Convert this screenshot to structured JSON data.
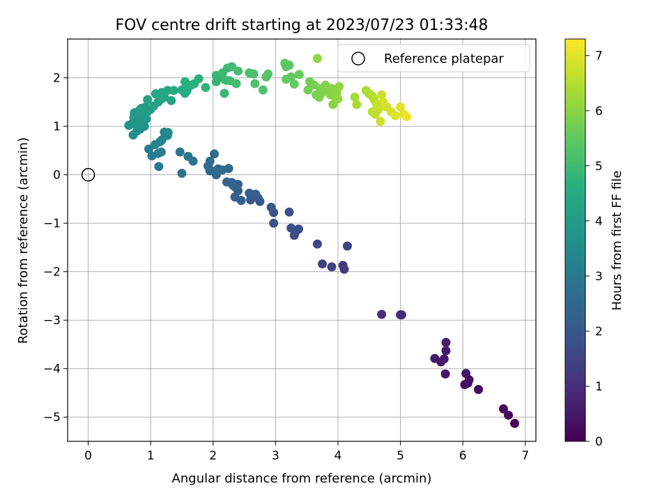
{
  "chart_data": {
    "type": "scatter",
    "title": "FOV centre drift starting at 2023/07/23 01:33:48",
    "xlabel": "Angular distance from reference (arcmin)",
    "ylabel": "Rotation from reference (arcmin)",
    "xlim": [
      -0.33,
      7.17
    ],
    "ylim": [
      -5.5,
      2.8
    ],
    "xticks": [
      "0",
      "1",
      "2",
      "3",
      "4",
      "5",
      "6",
      "7"
    ],
    "yticks": [
      "−5",
      "−4",
      "−3",
      "−2",
      "−1",
      "0",
      "1",
      "2"
    ],
    "grid": true,
    "legend": {
      "placement": "upper right",
      "entries": [
        "Reference platepar"
      ]
    },
    "reference_point": {
      "x": 0.0,
      "y": 0.0,
      "marker": "hollow-circle"
    },
    "colorbar": {
      "label": "Hours from first FF file",
      "range": [
        0,
        7.3
      ],
      "ticks": [
        "0",
        "1",
        "2",
        "3",
        "4",
        "5",
        "6",
        "7"
      ],
      "colormap": "viridis"
    },
    "series": [
      {
        "points": [
          {
            "x": 6.83,
            "y": -5.13,
            "t": 0.05
          },
          {
            "x": 6.73,
            "y": -4.96,
            "t": 0.1
          },
          {
            "x": 6.65,
            "y": -4.83,
            "t": 0.15
          },
          {
            "x": 6.25,
            "y": -4.43,
            "t": 0.25
          },
          {
            "x": 6.08,
            "y": -4.3,
            "t": 0.3
          },
          {
            "x": 6.1,
            "y": -4.23,
            "t": 0.32
          },
          {
            "x": 6.03,
            "y": -4.33,
            "t": 0.35
          },
          {
            "x": 6.05,
            "y": -4.1,
            "t": 0.4
          },
          {
            "x": 5.72,
            "y": -4.11,
            "t": 0.45
          },
          {
            "x": 5.55,
            "y": -3.79,
            "t": 0.55
          },
          {
            "x": 5.65,
            "y": -3.86,
            "t": 0.5
          },
          {
            "x": 5.7,
            "y": -3.8,
            "t": 0.52
          },
          {
            "x": 5.73,
            "y": -3.63,
            "t": 0.6
          },
          {
            "x": 5.73,
            "y": -3.46,
            "t": 0.62
          },
          {
            "x": 4.7,
            "y": -2.88,
            "t": 0.95
          },
          {
            "x": 5.0,
            "y": -2.89,
            "t": 0.9
          },
          {
            "x": 5.02,
            "y": -2.89,
            "t": 0.92
          },
          {
            "x": 4.08,
            "y": -1.87,
            "t": 1.3
          },
          {
            "x": 4.1,
            "y": -1.95,
            "t": 1.25
          },
          {
            "x": 3.9,
            "y": -1.9,
            "t": 1.35
          },
          {
            "x": 3.75,
            "y": -1.84,
            "t": 1.4
          },
          {
            "x": 4.15,
            "y": -1.47,
            "t": 1.45
          },
          {
            "x": 3.67,
            "y": -1.43,
            "t": 1.5
          },
          {
            "x": 3.3,
            "y": -1.25,
            "t": 1.7
          },
          {
            "x": 3.32,
            "y": -1.18,
            "t": 1.72
          },
          {
            "x": 3.37,
            "y": -1.12,
            "t": 1.75
          },
          {
            "x": 3.25,
            "y": -1.1,
            "t": 1.78
          },
          {
            "x": 2.97,
            "y": -1.0,
            "t": 1.85
          },
          {
            "x": 3.22,
            "y": -0.77,
            "t": 1.8
          },
          {
            "x": 2.97,
            "y": -0.78,
            "t": 1.9
          },
          {
            "x": 2.93,
            "y": -0.67,
            "t": 1.95
          },
          {
            "x": 2.75,
            "y": -0.55,
            "t": 2.0
          },
          {
            "x": 2.72,
            "y": -0.48,
            "t": 2.05
          },
          {
            "x": 2.6,
            "y": -0.52,
            "t": 2.1
          },
          {
            "x": 2.63,
            "y": -0.45,
            "t": 2.12
          },
          {
            "x": 2.68,
            "y": -0.4,
            "t": 2.15
          },
          {
            "x": 2.58,
            "y": -0.38,
            "t": 2.18
          },
          {
            "x": 2.45,
            "y": -0.53,
            "t": 2.2
          },
          {
            "x": 2.35,
            "y": -0.46,
            "t": 2.22
          },
          {
            "x": 2.4,
            "y": -0.33,
            "t": 2.25
          },
          {
            "x": 2.35,
            "y": -0.25,
            "t": 2.28
          },
          {
            "x": 2.4,
            "y": -0.2,
            "t": 2.3
          },
          {
            "x": 2.3,
            "y": -0.16,
            "t": 2.32
          },
          {
            "x": 2.22,
            "y": -0.15,
            "t": 2.35
          },
          {
            "x": 2.32,
            "y": -0.22,
            "t": 2.38
          },
          {
            "x": 2.05,
            "y": 0.0,
            "t": 2.45
          },
          {
            "x": 2.02,
            "y": 0.07,
            "t": 2.5
          },
          {
            "x": 1.95,
            "y": 0.08,
            "t": 2.52
          },
          {
            "x": 2.08,
            "y": 0.12,
            "t": 2.55
          },
          {
            "x": 2.15,
            "y": 0.1,
            "t": 2.58
          },
          {
            "x": 2.25,
            "y": 0.13,
            "t": 2.6
          },
          {
            "x": 1.92,
            "y": 0.18,
            "t": 2.62
          },
          {
            "x": 1.95,
            "y": 0.28,
            "t": 2.65
          },
          {
            "x": 2.02,
            "y": 0.43,
            "t": 2.68
          },
          {
            "x": 1.5,
            "y": 0.03,
            "t": 2.75
          },
          {
            "x": 1.68,
            "y": 0.28,
            "t": 2.8
          },
          {
            "x": 1.6,
            "y": 0.38,
            "t": 2.85
          },
          {
            "x": 1.47,
            "y": 0.47,
            "t": 2.9
          },
          {
            "x": 1.13,
            "y": 0.17,
            "t": 3.0
          },
          {
            "x": 1.02,
            "y": 0.39,
            "t": 3.05
          },
          {
            "x": 1.12,
            "y": 0.44,
            "t": 3.08
          },
          {
            "x": 1.17,
            "y": 0.47,
            "t": 3.1
          },
          {
            "x": 0.97,
            "y": 0.53,
            "t": 3.15
          },
          {
            "x": 1.07,
            "y": 0.62,
            "t": 3.2
          },
          {
            "x": 1.15,
            "y": 0.68,
            "t": 3.25
          },
          {
            "x": 1.18,
            "y": 0.72,
            "t": 3.3
          },
          {
            "x": 1.27,
            "y": 0.81,
            "t": 3.35
          },
          {
            "x": 1.22,
            "y": 0.88,
            "t": 3.38
          },
          {
            "x": 1.28,
            "y": 0.87,
            "t": 3.4
          },
          {
            "x": 0.72,
            "y": 0.82,
            "t": 3.55
          },
          {
            "x": 0.78,
            "y": 0.9,
            "t": 3.6
          },
          {
            "x": 0.83,
            "y": 0.94,
            "t": 3.62
          },
          {
            "x": 0.9,
            "y": 1.0,
            "t": 3.65
          },
          {
            "x": 0.65,
            "y": 1.02,
            "t": 3.7
          },
          {
            "x": 0.7,
            "y": 1.05,
            "t": 3.72
          },
          {
            "x": 0.75,
            "y": 1.08,
            "t": 3.75
          },
          {
            "x": 0.82,
            "y": 1.1,
            "t": 3.78
          },
          {
            "x": 0.88,
            "y": 1.13,
            "t": 3.8
          },
          {
            "x": 0.93,
            "y": 1.15,
            "t": 3.82
          },
          {
            "x": 0.73,
            "y": 1.18,
            "t": 3.85
          },
          {
            "x": 0.8,
            "y": 1.22,
            "t": 3.88
          },
          {
            "x": 0.87,
            "y": 1.26,
            "t": 3.9
          },
          {
            "x": 0.74,
            "y": 1.28,
            "t": 3.92
          },
          {
            "x": 0.82,
            "y": 1.33,
            "t": 3.95
          },
          {
            "x": 0.95,
            "y": 1.3,
            "t": 3.98
          },
          {
            "x": 0.85,
            "y": 1.37,
            "t": 4.0
          },
          {
            "x": 1.0,
            "y": 1.35,
            "t": 4.02
          },
          {
            "x": 0.92,
            "y": 1.4,
            "t": 4.05
          },
          {
            "x": 1.05,
            "y": 1.42,
            "t": 4.1
          },
          {
            "x": 0.95,
            "y": 1.55,
            "t": 4.15
          },
          {
            "x": 1.12,
            "y": 1.5,
            "t": 4.2
          },
          {
            "x": 1.17,
            "y": 1.56,
            "t": 4.22
          },
          {
            "x": 1.22,
            "y": 1.6,
            "t": 4.25
          },
          {
            "x": 1.33,
            "y": 1.53,
            "t": 4.28
          },
          {
            "x": 1.08,
            "y": 1.67,
            "t": 4.3
          },
          {
            "x": 1.18,
            "y": 1.7,
            "t": 4.35
          },
          {
            "x": 1.27,
            "y": 1.74,
            "t": 4.4
          },
          {
            "x": 1.37,
            "y": 1.74,
            "t": 4.45
          },
          {
            "x": 1.5,
            "y": 1.75,
            "t": 4.5
          },
          {
            "x": 1.55,
            "y": 1.68,
            "t": 4.52
          },
          {
            "x": 1.58,
            "y": 1.73,
            "t": 4.55
          },
          {
            "x": 1.6,
            "y": 1.8,
            "t": 4.58
          },
          {
            "x": 1.65,
            "y": 1.85,
            "t": 4.6
          },
          {
            "x": 1.7,
            "y": 1.88,
            "t": 4.62
          },
          {
            "x": 1.55,
            "y": 1.92,
            "t": 4.65
          },
          {
            "x": 1.77,
            "y": 1.98,
            "t": 4.7
          },
          {
            "x": 1.88,
            "y": 1.8,
            "t": 4.75
          },
          {
            "x": 2.05,
            "y": 1.92,
            "t": 4.8
          },
          {
            "x": 2.1,
            "y": 2.0,
            "t": 4.82
          },
          {
            "x": 2.05,
            "y": 2.05,
            "t": 4.85
          },
          {
            "x": 2.18,
            "y": 1.68,
            "t": 4.88
          },
          {
            "x": 2.2,
            "y": 1.95,
            "t": 4.9
          },
          {
            "x": 2.15,
            "y": 2.1,
            "t": 4.92
          },
          {
            "x": 2.23,
            "y": 2.2,
            "t": 4.95
          },
          {
            "x": 2.3,
            "y": 2.23,
            "t": 4.98
          },
          {
            "x": 2.27,
            "y": 1.94,
            "t": 5.0
          },
          {
            "x": 2.37,
            "y": 1.88,
            "t": 5.05
          },
          {
            "x": 2.4,
            "y": 2.14,
            "t": 5.1
          },
          {
            "x": 2.58,
            "y": 2.1,
            "t": 5.15
          },
          {
            "x": 2.65,
            "y": 2.08,
            "t": 5.18
          },
          {
            "x": 2.67,
            "y": 1.88,
            "t": 5.2
          },
          {
            "x": 2.8,
            "y": 1.75,
            "t": 5.25
          },
          {
            "x": 2.85,
            "y": 2.02,
            "t": 5.3
          },
          {
            "x": 2.88,
            "y": 2.08,
            "t": 5.32
          },
          {
            "x": 3.15,
            "y": 2.3,
            "t": 5.4
          },
          {
            "x": 3.17,
            "y": 2.23,
            "t": 5.42
          },
          {
            "x": 3.22,
            "y": 2.26,
            "t": 5.45
          },
          {
            "x": 3.17,
            "y": 1.97,
            "t": 5.5
          },
          {
            "x": 3.25,
            "y": 2.02,
            "t": 5.52
          },
          {
            "x": 3.3,
            "y": 1.87,
            "t": 5.55
          },
          {
            "x": 3.38,
            "y": 2.07,
            "t": 5.6
          },
          {
            "x": 3.52,
            "y": 1.75,
            "t": 5.7
          },
          {
            "x": 3.55,
            "y": 1.92,
            "t": 5.72
          },
          {
            "x": 3.62,
            "y": 1.85,
            "t": 5.75
          },
          {
            "x": 3.65,
            "y": 1.65,
            "t": 5.8
          },
          {
            "x": 3.7,
            "y": 1.6,
            "t": 5.82
          },
          {
            "x": 3.72,
            "y": 1.78,
            "t": 5.85
          },
          {
            "x": 3.75,
            "y": 1.7,
            "t": 5.88
          },
          {
            "x": 3.8,
            "y": 1.85,
            "t": 5.9
          },
          {
            "x": 3.82,
            "y": 1.72,
            "t": 5.92
          },
          {
            "x": 3.88,
            "y": 1.65,
            "t": 5.95
          },
          {
            "x": 3.9,
            "y": 1.78,
            "t": 5.98
          },
          {
            "x": 3.92,
            "y": 1.45,
            "t": 6.0
          },
          {
            "x": 3.95,
            "y": 1.62,
            "t": 6.02
          },
          {
            "x": 3.98,
            "y": 1.7,
            "t": 6.05
          },
          {
            "x": 4.0,
            "y": 1.57,
            "t": 6.08
          },
          {
            "x": 4.02,
            "y": 1.82,
            "t": 6.1
          },
          {
            "x": 3.67,
            "y": 2.4,
            "t": 6.05
          },
          {
            "x": 4.27,
            "y": 1.6,
            "t": 6.3
          },
          {
            "x": 4.3,
            "y": 1.45,
            "t": 6.35
          },
          {
            "x": 4.45,
            "y": 1.74,
            "t": 6.4
          },
          {
            "x": 4.5,
            "y": 1.67,
            "t": 6.45
          },
          {
            "x": 4.55,
            "y": 1.62,
            "t": 6.5
          },
          {
            "x": 4.58,
            "y": 1.55,
            "t": 6.55
          },
          {
            "x": 4.55,
            "y": 1.3,
            "t": 6.6
          },
          {
            "x": 4.6,
            "y": 1.25,
            "t": 6.62
          },
          {
            "x": 4.62,
            "y": 1.45,
            "t": 6.65
          },
          {
            "x": 4.65,
            "y": 1.35,
            "t": 6.7
          },
          {
            "x": 4.68,
            "y": 1.1,
            "t": 6.72
          },
          {
            "x": 4.7,
            "y": 1.65,
            "t": 6.75
          },
          {
            "x": 4.72,
            "y": 1.5,
            "t": 6.8
          },
          {
            "x": 4.78,
            "y": 1.4,
            "t": 6.85
          },
          {
            "x": 4.85,
            "y": 1.3,
            "t": 6.9
          },
          {
            "x": 4.92,
            "y": 1.22,
            "t": 6.95
          },
          {
            "x": 5.0,
            "y": 1.4,
            "t": 7.0
          },
          {
            "x": 5.05,
            "y": 1.25,
            "t": 7.05
          },
          {
            "x": 5.1,
            "y": 1.2,
            "t": 7.1
          }
        ]
      }
    ]
  }
}
